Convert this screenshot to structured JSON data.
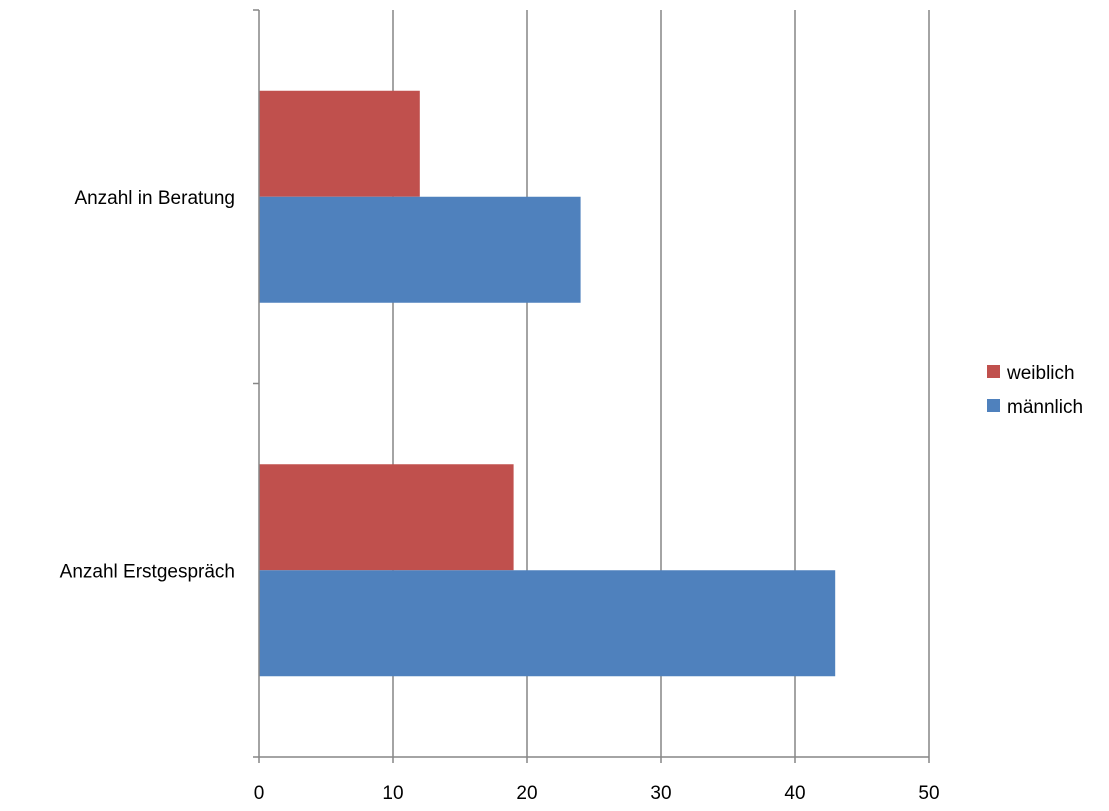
{
  "chart_data": {
    "type": "bar",
    "orientation": "horizontal",
    "categories": [
      "Anzahl in Beratung",
      "Anzahl Erstgespräch"
    ],
    "series": [
      {
        "name": "weiblich",
        "color": "#c0504d",
        "values": [
          12,
          19
        ]
      },
      {
        "name": "männlich",
        "color": "#4f81bd",
        "values": [
          24,
          43
        ]
      }
    ],
    "xlim": [
      0,
      50
    ],
    "xticks": [
      "0",
      "10",
      "20",
      "30",
      "40",
      "50"
    ],
    "grid": "vertical",
    "legend_position": "right",
    "title": "",
    "xlabel": "",
    "ylabel": ""
  }
}
